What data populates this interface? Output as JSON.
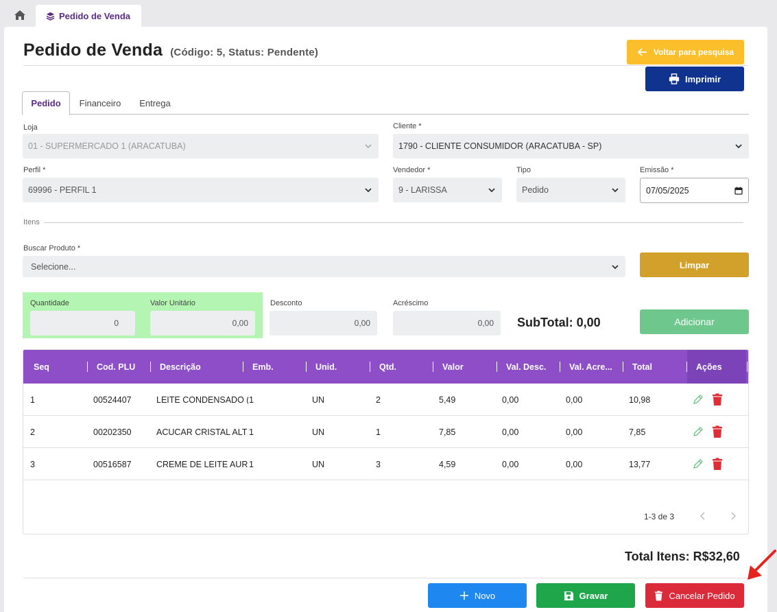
{
  "nav": {
    "tab_label": "Pedido de Venda"
  },
  "header": {
    "title": "Pedido de Venda",
    "subtitle": "(Código: 5, Status: Pendente)",
    "voltar_label": "Voltar para pesquisa",
    "imprimir_label": "Imprimir"
  },
  "tabs": [
    {
      "label": "Pedido"
    },
    {
      "label": "Financeiro"
    },
    {
      "label": "Entrega"
    }
  ],
  "form": {
    "loja_label": "Loja",
    "loja_value": "01 - SUPERMERCADO 1 (ARACATUBA)",
    "cliente_label": "Cliente *",
    "cliente_value": "1790 - CLIENTE CONSUMIDOR  (ARACATUBA - SP)",
    "perfil_label": "Perfil *",
    "perfil_value": "69996 - PERFIL 1",
    "vendedor_label": "Vendedor *",
    "vendedor_value": "9 - LARISSA",
    "tipo_label": "Tipo",
    "tipo_value": "Pedido",
    "emissao_label": "Emissão *",
    "emissao_value": "07/05/2025"
  },
  "itens": {
    "section_label": "Itens",
    "buscar_label": "Buscar Produto *",
    "buscar_placeholder": "Selecione...",
    "limpar_label": "Limpar",
    "quantidade_label": "Quantidade",
    "quantidade_value": "0",
    "valor_unitario_label": "Valor Unitário",
    "valor_unitario_value": "0,00",
    "desconto_label": "Desconto",
    "desconto_value": "0,00",
    "acrescimo_label": "Acréscimo",
    "acrescimo_value": "0,00",
    "subtotal": "SubTotal: 0,00",
    "adicionar_label": "Adicionar"
  },
  "table": {
    "headers": [
      "Seq",
      "Cod. PLU",
      "Descrição",
      "Emb.",
      "Unid.",
      "Qtd.",
      "Valor",
      "Val. Desc.",
      "Val. Acre...",
      "Total",
      "Ações"
    ],
    "rows": [
      {
        "seq": "1",
        "plu": "00524407",
        "descricao": "LEITE CONDENSADO (",
        "emb": "1",
        "unid": "UN",
        "qtd": "2",
        "valor": "5,49",
        "desc": "0,00",
        "acre": "0,00",
        "total": "10,98"
      },
      {
        "seq": "2",
        "plu": "00202350",
        "descricao": "ACUCAR CRISTAL ALT",
        "emb": "1",
        "unid": "UN",
        "qtd": "1",
        "valor": "7,85",
        "desc": "0,00",
        "acre": "0,00",
        "total": "7,85"
      },
      {
        "seq": "3",
        "plu": "00516587",
        "descricao": "CREME DE LEITE AUR(",
        "emb": "1",
        "unid": "UN",
        "qtd": "3",
        "valor": "4,59",
        "desc": "0,00",
        "acre": "0,00",
        "total": "13,77"
      }
    ],
    "pagination": "1-3 de 3"
  },
  "footer": {
    "total": "Total Itens: R$32,60",
    "novo_label": "Novo",
    "gravar_label": "Gravar",
    "cancelar_label": "Cancelar Pedido"
  },
  "colors": {
    "purple": "#8d4ec7",
    "yellow": "#fbbf2c",
    "navy": "#10338f",
    "gold": "#d2a12b",
    "green": "#1fa54a",
    "blue": "#1e87f0",
    "red": "#db2b3b"
  }
}
